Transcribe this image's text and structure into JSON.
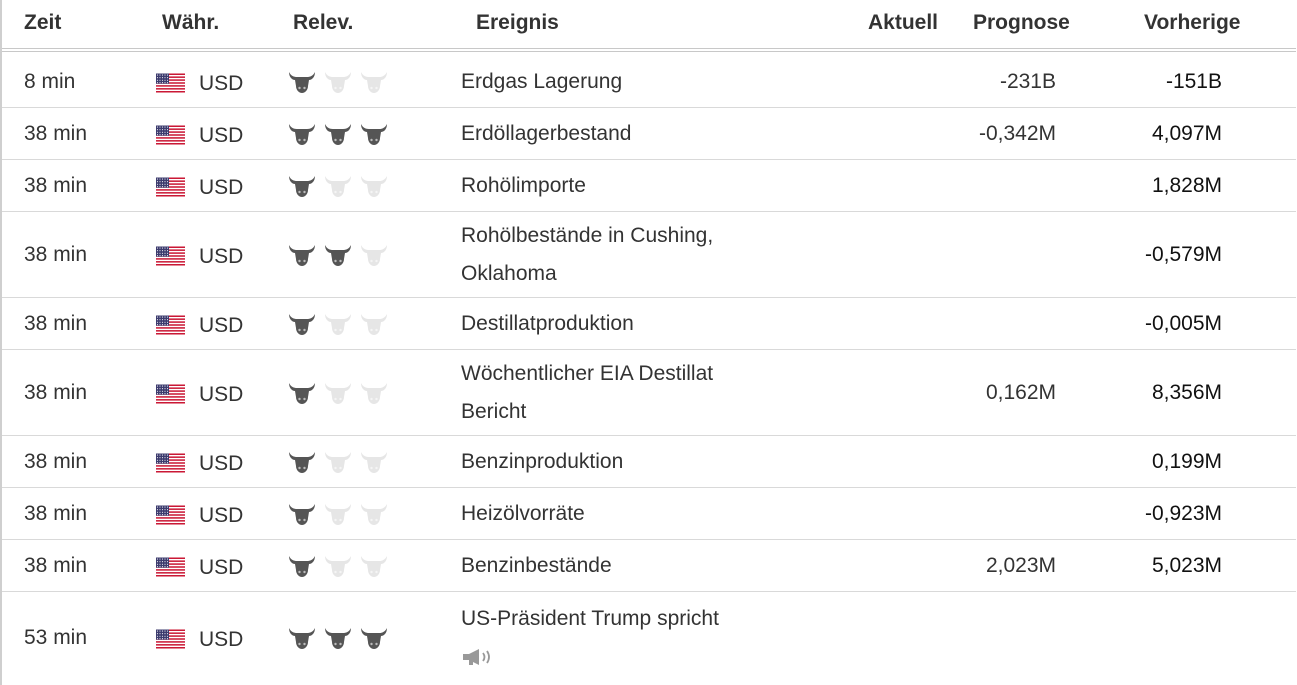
{
  "header": {
    "time": "Zeit",
    "currency": "Währ.",
    "relevance": "Relev.",
    "event": "Ereignis",
    "actual": "Aktuell",
    "forecast": "Prognose",
    "previous": "Vorherige"
  },
  "colors": {
    "bull_active": "#555555",
    "bull_inactive": "#e6e6e6",
    "row_border": "#d9d9d9"
  },
  "rows": [
    {
      "time": "8 min",
      "currency": "USD",
      "importance": 1,
      "event": "Erdgas Lagerung",
      "forecast": "-231B",
      "previous": "-151B"
    },
    {
      "time": "38 min",
      "currency": "USD",
      "importance": 3,
      "event": "Erdöllagerbestand",
      "forecast": "-0,342M",
      "previous": "4,097M"
    },
    {
      "time": "38 min",
      "currency": "USD",
      "importance": 1,
      "event": "Rohölimporte",
      "forecast": "",
      "previous": "1,828M"
    },
    {
      "time": "38 min",
      "currency": "USD",
      "importance": 2,
      "event": "Rohölbestände in Cushing, Oklahoma",
      "forecast": "",
      "previous": "-0,579M"
    },
    {
      "time": "38 min",
      "currency": "USD",
      "importance": 1,
      "event": "Destillatproduktion",
      "forecast": "",
      "previous": "-0,005M"
    },
    {
      "time": "38 min",
      "currency": "USD",
      "importance": 1,
      "event": "Wöchentlicher EIA Destillat Bericht",
      "forecast": "0,162M",
      "previous": "8,356M"
    },
    {
      "time": "38 min",
      "currency": "USD",
      "importance": 1,
      "event": "Benzinproduktion",
      "forecast": "",
      "previous": "0,199M"
    },
    {
      "time": "38 min",
      "currency": "USD",
      "importance": 1,
      "event": "Heizölvorräte",
      "forecast": "",
      "previous": "-0,923M"
    },
    {
      "time": "38 min",
      "currency": "USD",
      "importance": 1,
      "event": "Benzinbestände",
      "forecast": "2,023M",
      "previous": "5,023M"
    },
    {
      "time": "53 min",
      "currency": "USD",
      "importance": 3,
      "event": "US-Präsident Trump spricht",
      "forecast": "",
      "previous": "",
      "speech": true
    }
  ]
}
